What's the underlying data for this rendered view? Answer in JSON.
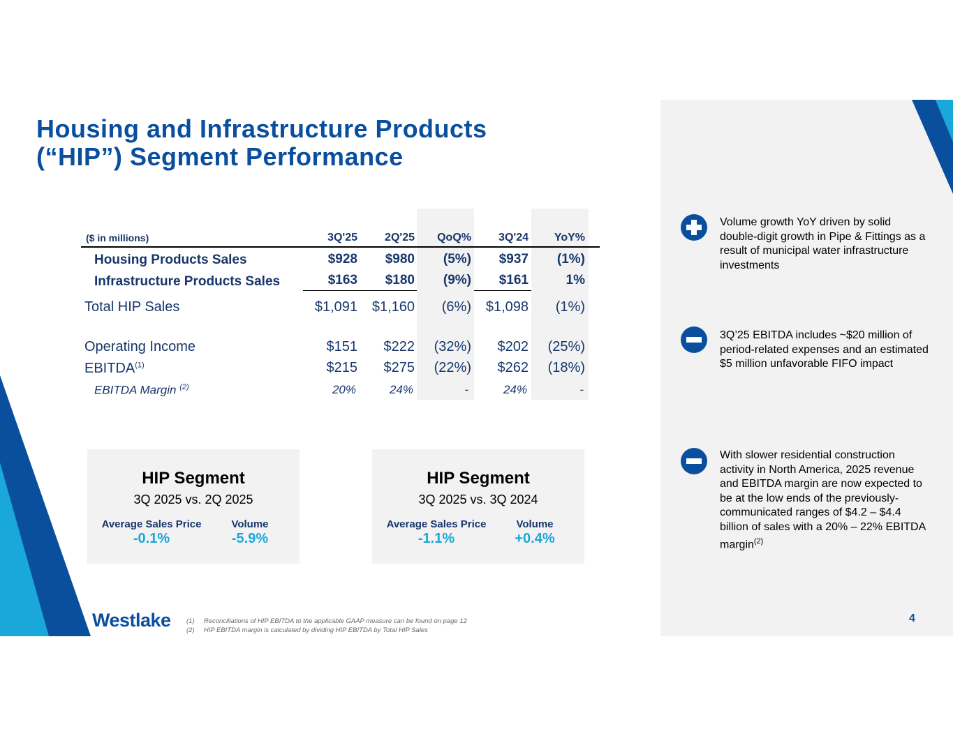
{
  "title": {
    "line1": "Housing and Infrastructure Products",
    "line2": "(“HIP”) Segment Performance"
  },
  "table": {
    "unit_label": "($ in millions)",
    "columns": [
      "3Q'25",
      "2Q'25",
      "QoQ%",
      "3Q'24",
      "YoY%"
    ],
    "rows": [
      {
        "label": "Housing Products Sales",
        "values": [
          "$928",
          "$980",
          "(5%)",
          "$937",
          "(1%)"
        ]
      },
      {
        "label": "Infrastructure Products Sales",
        "values": [
          "$163",
          "$180",
          "(9%)",
          "$161",
          "1%"
        ]
      },
      {
        "label": "Total HIP Sales",
        "values": [
          "$1,091",
          "$1,160",
          "(6%)",
          "$1,098",
          "(1%)"
        ]
      },
      {
        "label": "Operating Income",
        "values": [
          "$151",
          "$222",
          "(32%)",
          "$202",
          "(25%)"
        ]
      },
      {
        "label": "EBITDA",
        "sup": "(1)",
        "values": [
          "$215",
          "$275",
          "(22%)",
          "$262",
          "(18%)"
        ]
      },
      {
        "label": "EBITDA Margin",
        "sup": "(2)",
        "values": [
          "20%",
          "24%",
          "-",
          "24%",
          "-"
        ]
      }
    ]
  },
  "boxes": [
    {
      "title": "HIP Segment",
      "subtitle": "3Q 2025 vs. 2Q 2025",
      "asp_label": "Average Sales Price",
      "asp_value": "-0.1%",
      "vol_label": "Volume",
      "vol_value": "-5.9%"
    },
    {
      "title": "HIP Segment",
      "subtitle": "3Q 2025 vs. 3Q 2024",
      "asp_label": "Average Sales Price",
      "asp_value": "-1.1%",
      "vol_label": "Volume",
      "vol_value": "+0.4%"
    }
  ],
  "bullets": [
    {
      "icon": "plus-icon",
      "text": "Volume growth YoY driven by solid double-digit growth in Pipe & Fittings as a result of municipal water infrastructure investments"
    },
    {
      "icon": "minus-icon",
      "text": "3Q’25 EBITDA includes ~$20 million of period-related expenses and an estimated $5 million unfavorable FIFO impact"
    },
    {
      "icon": "minus-icon",
      "text": "With slower residential construction activity in North America, 2025 revenue and EBITDA margin are now expected to be at the low ends of the previously-communicated ranges of $4.2 – $4.4 billion of sales with a 20% – 22% EBITDA margin",
      "sup": "(2)"
    }
  ],
  "footnotes": [
    {
      "num": "(1)",
      "text": "Reconciliations of HIP EBITDA to the applicable GAAP measure can be found on page 12"
    },
    {
      "num": "(2)",
      "text": "HIP EBITDA margin is calculated by dividing HIP EBITDA by Total HIP Sales"
    }
  ],
  "logo": {
    "mark": "W",
    "text": "estlake"
  },
  "page_number": "4",
  "colors": {
    "brand_blue": "#0a4f9e",
    "accent_cyan": "#1aa7d9",
    "panel_gray": "#f2f2f2"
  }
}
